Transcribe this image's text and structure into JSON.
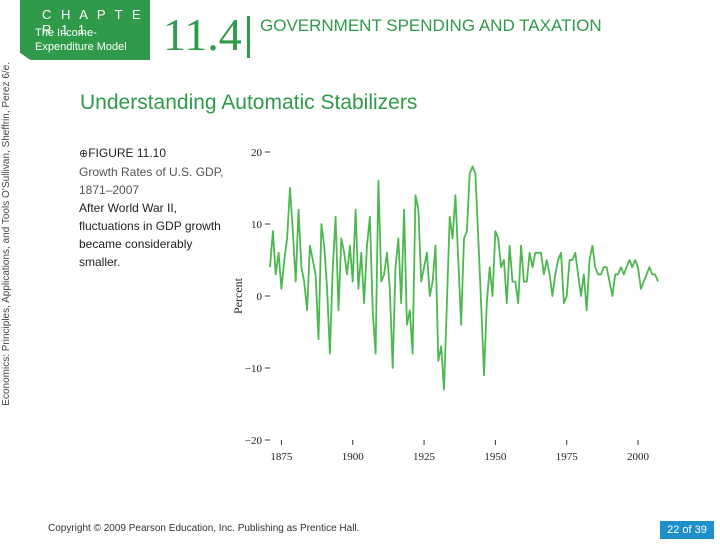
{
  "header": {
    "chapter_label": "C H A P T E R   1 1",
    "chapter_subtitle": "The Income-Expenditure Model",
    "section_number": "11.4",
    "section_title": "GOVERNMENT SPENDING AND TAXATION"
  },
  "sidebar_credit": "Economics: Principles, Applications, and Tools     O’Sullivan, Sheffrin, Perez     6/e.",
  "slide": {
    "title": "Understanding Automatic Stabilizers"
  },
  "caption": {
    "icon": "circled-plus",
    "figure_label": "FIGURE 11.10",
    "figure_title": "Growth Rates of U.S. GDP, 1871–2007",
    "text": "After World War II, fluctuations in GDP growth became considerably smaller."
  },
  "footer": {
    "copyright": "Copyright © 2009 Pearson Education, Inc. Publishing as Prentice Hall.",
    "page": "22 of 39"
  },
  "colors": {
    "accent": "#2f9a4a",
    "line": "#4db84f",
    "badge": "#1f8fc9"
  },
  "chart_data": {
    "type": "line",
    "title": "",
    "xlabel": "",
    "ylabel": "Percent",
    "xlim": [
      1871,
      2007
    ],
    "ylim": [
      -20,
      20
    ],
    "x_ticks": [
      1875,
      1900,
      1925,
      1950,
      1975,
      2000
    ],
    "y_ticks": [
      20,
      10,
      0,
      -10,
      -20
    ],
    "y_tick_labels": [
      "20",
      "10",
      "0",
      "−10",
      "−20"
    ],
    "series": [
      {
        "name": "GDP growth",
        "x": [
          1871,
          1872,
          1873,
          1874,
          1875,
          1876,
          1877,
          1878,
          1879,
          1880,
          1881,
          1882,
          1883,
          1884,
          1885,
          1886,
          1887,
          1888,
          1889,
          1890,
          1891,
          1892,
          1893,
          1894,
          1895,
          1896,
          1897,
          1898,
          1899,
          1900,
          1901,
          1902,
          1903,
          1904,
          1905,
          1906,
          1907,
          1908,
          1909,
          1910,
          1911,
          1912,
          1913,
          1914,
          1915,
          1916,
          1917,
          1918,
          1919,
          1920,
          1921,
          1922,
          1923,
          1924,
          1925,
          1926,
          1927,
          1928,
          1929,
          1930,
          1931,
          1932,
          1933,
          1934,
          1935,
          1936,
          1937,
          1938,
          1939,
          1940,
          1941,
          1942,
          1943,
          1944,
          1945,
          1946,
          1947,
          1948,
          1949,
          1950,
          1951,
          1952,
          1953,
          1954,
          1955,
          1956,
          1957,
          1958,
          1959,
          1960,
          1961,
          1962,
          1963,
          1964,
          1965,
          1966,
          1967,
          1968,
          1969,
          1970,
          1971,
          1972,
          1973,
          1974,
          1975,
          1976,
          1977,
          1978,
          1979,
          1980,
          1981,
          1982,
          1983,
          1984,
          1985,
          1986,
          1987,
          1988,
          1989,
          1990,
          1991,
          1992,
          1993,
          1994,
          1995,
          1996,
          1997,
          1998,
          1999,
          2000,
          2001,
          2002,
          2003,
          2004,
          2005,
          2006,
          2007
        ],
        "values": [
          4,
          9,
          3,
          6,
          1,
          5,
          8,
          15,
          9,
          2,
          12,
          4,
          2,
          -2,
          7,
          5,
          3,
          -6,
          10,
          7,
          1,
          -8,
          4,
          11,
          -2,
          8,
          6,
          3,
          7,
          2,
          12,
          1,
          6,
          -1,
          7,
          11,
          -2,
          -8,
          16,
          2,
          3,
          6,
          1,
          -10,
          4,
          8,
          -1,
          12,
          -4,
          -2,
          -8,
          14,
          12,
          2,
          4,
          6,
          0,
          2,
          7,
          -9,
          -7,
          -13,
          -1,
          11,
          8,
          14,
          5,
          -4,
          8,
          9,
          17,
          18,
          17,
          8,
          -1,
          -11,
          -1,
          4,
          0,
          9,
          8,
          4,
          5,
          -1,
          7,
          2,
          2,
          -1,
          7,
          2,
          2,
          6,
          4,
          6,
          6,
          6,
          3,
          5,
          3,
          0,
          3,
          5,
          6,
          -1,
          0,
          5,
          5,
          6,
          3,
          0,
          3,
          -2,
          5,
          7,
          4,
          3,
          3,
          4,
          4,
          2,
          0,
          3,
          3,
          4,
          3,
          4,
          5,
          4,
          5,
          4,
          1,
          2,
          3,
          4,
          3,
          3,
          2
        ]
      }
    ]
  }
}
